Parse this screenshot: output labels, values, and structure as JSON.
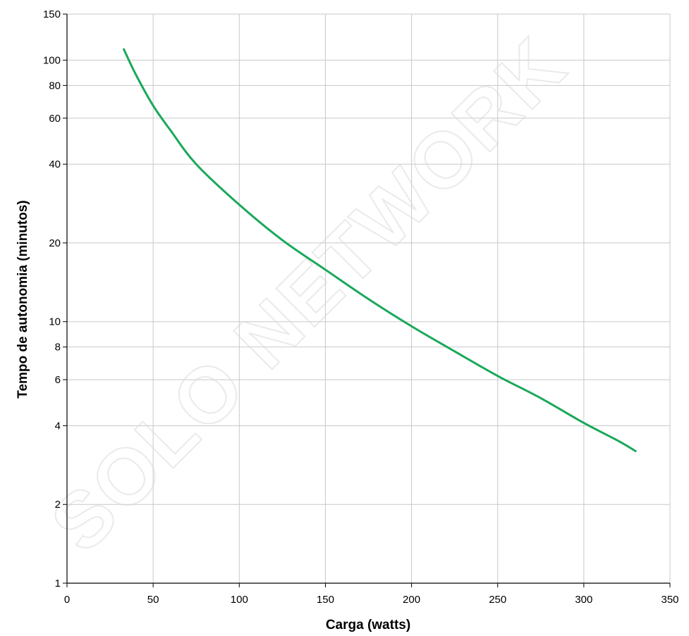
{
  "chart_data": {
    "type": "line",
    "title": "",
    "xlabel": "Carga (watts)",
    "ylabel": "Tempo de autonomia (minutos)",
    "xlim": [
      0,
      350
    ],
    "ylim": [
      1,
      150
    ],
    "y_scale": "log",
    "grid": true,
    "x_ticks": [
      0,
      50,
      100,
      150,
      200,
      250,
      300,
      350
    ],
    "y_ticks": [
      1,
      2,
      4,
      6,
      8,
      10,
      20,
      40,
      60,
      80,
      100,
      150
    ],
    "x_tick_labels": [
      "0",
      "50",
      "100",
      "150",
      "200",
      "250",
      "300",
      "350"
    ],
    "y_tick_labels": [
      "1",
      "2",
      "4",
      "6",
      "8",
      "10",
      "20",
      "40",
      "60",
      "80",
      "100",
      "150"
    ],
    "series": [
      {
        "color": "#1aa85a",
        "x": [
          33,
          40,
          50,
          60,
          75,
          100,
          125,
          150,
          175,
          200,
          225,
          250,
          275,
          300,
          320,
          330
        ],
        "y": [
          110,
          88,
          67,
          54,
          40,
          28,
          20.5,
          15.8,
          12.2,
          9.6,
          7.7,
          6.2,
          5.1,
          4.1,
          3.5,
          3.2
        ]
      }
    ]
  },
  "watermark": "SOLO NETWORK",
  "colors": {
    "grid": "#c8c8c8",
    "axis": "#000000",
    "line": "#1aa85a"
  }
}
